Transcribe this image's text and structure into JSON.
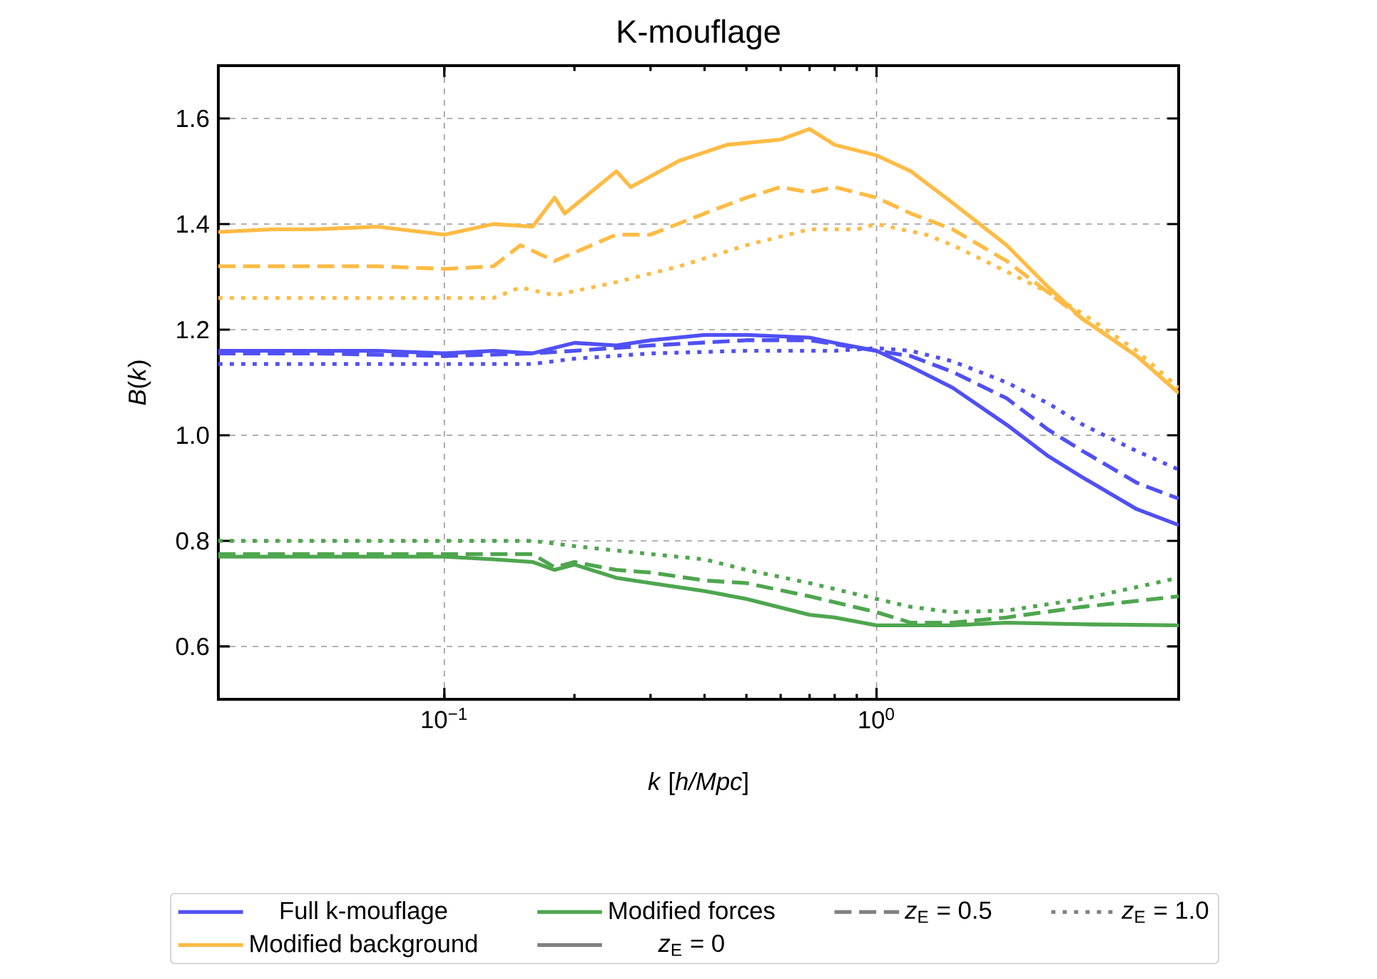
{
  "chart_data": {
    "type": "line",
    "title": "K-mouflage",
    "xlabel": "*k* [*h/Mpc*]",
    "ylabel": "*B*(*k*)",
    "log": "x",
    "xlim": [
      0.03,
      5
    ],
    "ylim": [
      0.5,
      1.7
    ],
    "xticks": [
      {
        "value": 0.1,
        "label": "10$^{−1}$"
      },
      {
        "value": 1,
        "label": "10$^{0}$"
      }
    ],
    "yticks": [
      {
        "value": 0.6,
        "label": "0.6"
      },
      {
        "value": 0.8,
        "label": "0.8"
      },
      {
        "value": 1.0,
        "label": "1.0"
      },
      {
        "value": 1.2,
        "label": "1.2"
      },
      {
        "value": 1.4,
        "label": "1.4"
      },
      {
        "value": 1.6,
        "label": "1.6"
      }
    ],
    "grid": true,
    "legend": "bottom",
    "series": [
      {
        "name": "Full k-mouflage",
        "color": "#5050f5",
        "line_style": "solid",
        "x": [
          0.03,
          0.04,
          0.05,
          0.07,
          0.1,
          0.13,
          0.16,
          0.2,
          0.25,
          0.3,
          0.4,
          0.5,
          0.7,
          0.8,
          1.0,
          1.2,
          1.5,
          2,
          2.5,
          3,
          4,
          5
        ],
        "values": [
          1.16,
          1.16,
          1.16,
          1.16,
          1.155,
          1.16,
          1.155,
          1.175,
          1.17,
          1.18,
          1.19,
          1.19,
          1.185,
          1.175,
          1.16,
          1.13,
          1.09,
          1.02,
          0.96,
          0.92,
          0.86,
          0.83
        ]
      },
      {
        "name": "Modified background",
        "color": "#ffbb44",
        "line_style": "solid",
        "x": [
          0.03,
          0.04,
          0.05,
          0.07,
          0.1,
          0.13,
          0.16,
          0.18,
          0.19,
          0.25,
          0.27,
          0.35,
          0.45,
          0.6,
          0.7,
          0.8,
          1.0,
          1.2,
          1.5,
          2,
          2.5,
          3,
          4,
          5
        ],
        "values": [
          1.385,
          1.39,
          1.39,
          1.395,
          1.38,
          1.4,
          1.395,
          1.45,
          1.42,
          1.5,
          1.47,
          1.52,
          1.55,
          1.56,
          1.58,
          1.55,
          1.53,
          1.5,
          1.44,
          1.36,
          1.28,
          1.22,
          1.15,
          1.08
        ]
      },
      {
        "name": "Modified forces",
        "color": "#4ea64e",
        "line_style": "solid",
        "x": [
          0.03,
          0.05,
          0.07,
          0.1,
          0.13,
          0.16,
          0.18,
          0.2,
          0.25,
          0.3,
          0.4,
          0.5,
          0.7,
          0.8,
          1.0,
          1.2,
          1.5,
          2,
          3,
          5
        ],
        "values": [
          0.77,
          0.77,
          0.77,
          0.77,
          0.765,
          0.76,
          0.745,
          0.755,
          0.73,
          0.72,
          0.705,
          0.69,
          0.66,
          0.655,
          0.64,
          0.64,
          0.64,
          0.645,
          0.642,
          0.64
        ]
      },
      {
        "color": "#5050f5",
        "line_style": "dashed",
        "x": [
          0.03,
          0.05,
          0.1,
          0.16,
          0.2,
          0.3,
          0.5,
          0.7,
          1.0,
          1.2,
          1.5,
          2,
          2.5,
          3,
          4,
          5
        ],
        "values": [
          1.155,
          1.155,
          1.15,
          1.155,
          1.16,
          1.17,
          1.18,
          1.18,
          1.16,
          1.15,
          1.12,
          1.07,
          1.01,
          0.97,
          0.91,
          0.88
        ]
      },
      {
        "color": "#ffbb44",
        "line_style": "dashed",
        "x": [
          0.03,
          0.05,
          0.07,
          0.1,
          0.13,
          0.15,
          0.18,
          0.25,
          0.3,
          0.4,
          0.5,
          0.6,
          0.7,
          0.8,
          1.0,
          1.2,
          1.5,
          2,
          2.5,
          3,
          4,
          5
        ],
        "values": [
          1.32,
          1.32,
          1.32,
          1.315,
          1.32,
          1.36,
          1.33,
          1.38,
          1.38,
          1.42,
          1.45,
          1.47,
          1.46,
          1.47,
          1.45,
          1.42,
          1.39,
          1.33,
          1.27,
          1.22,
          1.15,
          1.08
        ]
      },
      {
        "color": "#4ea64e",
        "line_style": "dashed",
        "x": [
          0.03,
          0.05,
          0.1,
          0.16,
          0.18,
          0.2,
          0.25,
          0.3,
          0.4,
          0.5,
          0.7,
          1.0,
          1.2,
          1.5,
          2,
          3,
          5
        ],
        "values": [
          0.775,
          0.775,
          0.775,
          0.775,
          0.75,
          0.76,
          0.745,
          0.74,
          0.725,
          0.72,
          0.695,
          0.665,
          0.645,
          0.645,
          0.655,
          0.675,
          0.695
        ]
      },
      {
        "color": "#5050f5",
        "line_style": "dotted",
        "x": [
          0.03,
          0.05,
          0.1,
          0.16,
          0.2,
          0.3,
          0.5,
          0.8,
          1.0,
          1.2,
          1.5,
          2,
          2.5,
          3,
          4,
          5
        ],
        "values": [
          1.135,
          1.135,
          1.135,
          1.135,
          1.145,
          1.155,
          1.16,
          1.16,
          1.165,
          1.16,
          1.14,
          1.1,
          1.06,
          1.02,
          0.97,
          0.935
        ]
      },
      {
        "color": "#ffbb44",
        "line_style": "dotted",
        "x": [
          0.03,
          0.05,
          0.1,
          0.13,
          0.15,
          0.18,
          0.25,
          0.35,
          0.5,
          0.7,
          0.9,
          1.0,
          1.3,
          1.5,
          2,
          2.5,
          3,
          4,
          5
        ],
        "values": [
          1.26,
          1.26,
          1.26,
          1.26,
          1.28,
          1.265,
          1.29,
          1.32,
          1.36,
          1.39,
          1.39,
          1.4,
          1.38,
          1.36,
          1.31,
          1.27,
          1.23,
          1.16,
          1.09
        ]
      },
      {
        "color": "#4ea64e",
        "line_style": "dotted",
        "x": [
          0.03,
          0.05,
          0.1,
          0.16,
          0.2,
          0.3,
          0.4,
          0.5,
          0.7,
          1.0,
          1.2,
          1.5,
          2,
          3,
          5
        ],
        "values": [
          0.8,
          0.8,
          0.8,
          0.8,
          0.79,
          0.775,
          0.765,
          0.745,
          0.72,
          0.69,
          0.675,
          0.665,
          0.668,
          0.69,
          0.73
        ]
      },
      {
        "name": "*z*$_{E}$ = 0",
        "color": "#808080",
        "line_style": "solid"
      },
      {
        "name": "*z*$_{E}$ = 0.5",
        "color": "#808080",
        "line_style": "dashed"
      },
      {
        "name": "*z*$_{E}$ = 1.0",
        "color": "#808080",
        "line_style": "dotted"
      }
    ]
  }
}
